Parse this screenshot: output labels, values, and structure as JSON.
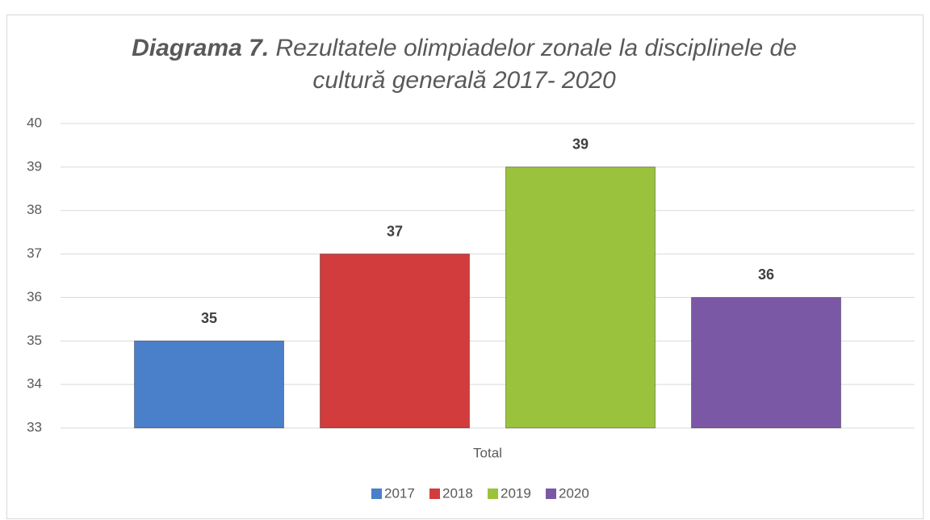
{
  "chart_data": {
    "type": "bar",
    "title_lead": "Diagrama 7.",
    "title": "Rezultatele olimpiadelor zonale la disciplinele de cultură generală 2017- 2020",
    "categories": [
      "Total"
    ],
    "series": [
      {
        "name": "2017",
        "color": "#4a7fc9",
        "values": [
          35
        ]
      },
      {
        "name": "2018",
        "color": "#d23c3c",
        "values": [
          37
        ]
      },
      {
        "name": "2019",
        "color": "#9bc23c",
        "values": [
          39
        ]
      },
      {
        "name": "2020",
        "color": "#7b58a6",
        "values": [
          36
        ]
      }
    ],
    "ylim": [
      33,
      40
    ],
    "yticks": [
      33,
      34,
      35,
      36,
      37,
      38,
      39,
      40
    ],
    "grid": true,
    "legend": "bottom"
  }
}
